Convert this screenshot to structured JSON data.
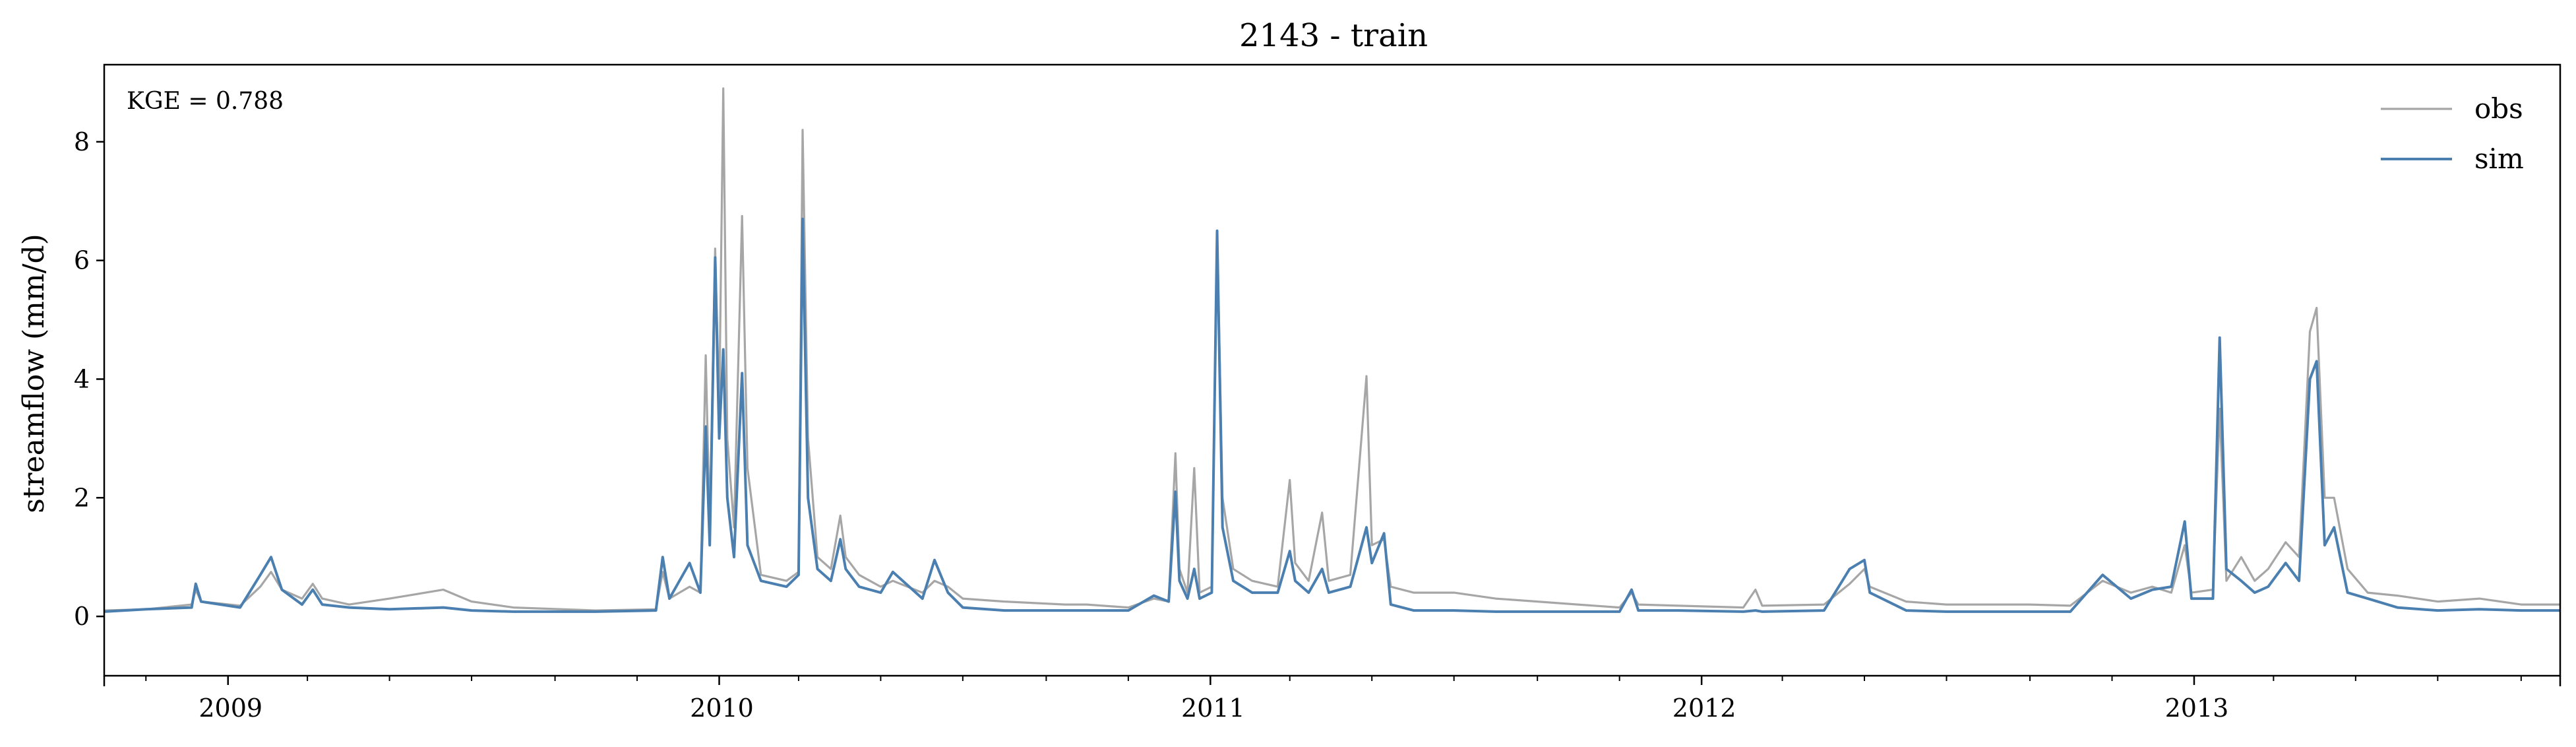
{
  "chart_data": {
    "type": "line",
    "title": "2143 - train",
    "ylabel": "streamflow (mm/d)",
    "xlabel": "",
    "annotation": "KGE = 0.788",
    "xlim": [
      "2008-10-01",
      "2013-09-30"
    ],
    "ylim": [
      -1,
      9.3
    ],
    "yticks": [
      0,
      2,
      4,
      6,
      8
    ],
    "xticks": [
      {
        "date": "2009-01-01",
        "label": "2009"
      },
      {
        "date": "2010-01-01",
        "label": "2010"
      },
      {
        "date": "2011-01-01",
        "label": "2011"
      },
      {
        "date": "2012-01-01",
        "label": "2012"
      },
      {
        "date": "2013-01-01",
        "label": "2013"
      }
    ],
    "grid": false,
    "legend": "upper-right",
    "series": [
      {
        "name": "obs",
        "color": "#a6a6a6",
        "points": [
          [
            "2008-10-01",
            0.1
          ],
          [
            "2008-11-01",
            0.12
          ],
          [
            "2008-12-05",
            0.2
          ],
          [
            "2008-12-08",
            0.45
          ],
          [
            "2008-12-12",
            0.25
          ],
          [
            "2009-01-10",
            0.18
          ],
          [
            "2009-01-25",
            0.5
          ],
          [
            "2009-02-02",
            0.75
          ],
          [
            "2009-02-10",
            0.45
          ],
          [
            "2009-02-25",
            0.3
          ],
          [
            "2009-03-05",
            0.55
          ],
          [
            "2009-03-12",
            0.3
          ],
          [
            "2009-04-01",
            0.2
          ],
          [
            "2009-05-01",
            0.3
          ],
          [
            "2009-06-10",
            0.45
          ],
          [
            "2009-07-01",
            0.25
          ],
          [
            "2009-08-01",
            0.15
          ],
          [
            "2009-10-01",
            0.1
          ],
          [
            "2009-11-15",
            0.12
          ],
          [
            "2009-11-20",
            0.75
          ],
          [
            "2009-11-25",
            0.3
          ],
          [
            "2009-12-10",
            0.5
          ],
          [
            "2009-12-18",
            0.4
          ],
          [
            "2009-12-22",
            4.4
          ],
          [
            "2009-12-25",
            1.5
          ],
          [
            "2009-12-29",
            6.2
          ],
          [
            "2010-01-01",
            3.5
          ],
          [
            "2010-01-04",
            8.9
          ],
          [
            "2010-01-07",
            3.0
          ],
          [
            "2010-01-12",
            1.5
          ],
          [
            "2010-01-18",
            6.75
          ],
          [
            "2010-01-22",
            2.5
          ],
          [
            "2010-02-01",
            0.7
          ],
          [
            "2010-02-20",
            0.6
          ],
          [
            "2010-03-01",
            0.75
          ],
          [
            "2010-03-04",
            8.2
          ],
          [
            "2010-03-08",
            3.0
          ],
          [
            "2010-03-15",
            1.0
          ],
          [
            "2010-03-25",
            0.8
          ],
          [
            "2010-04-01",
            1.7
          ],
          [
            "2010-04-05",
            1.0
          ],
          [
            "2010-04-15",
            0.7
          ],
          [
            "2010-05-01",
            0.5
          ],
          [
            "2010-05-10",
            0.6
          ],
          [
            "2010-06-01",
            0.4
          ],
          [
            "2010-06-10",
            0.6
          ],
          [
            "2010-06-20",
            0.5
          ],
          [
            "2010-07-01",
            0.3
          ],
          [
            "2010-08-01",
            0.25
          ],
          [
            "2010-09-15",
            0.2
          ],
          [
            "2010-10-01",
            0.2
          ],
          [
            "2010-11-01",
            0.15
          ],
          [
            "2010-11-20",
            0.3
          ],
          [
            "2010-12-01",
            0.25
          ],
          [
            "2010-12-06",
            2.75
          ],
          [
            "2010-12-09",
            0.8
          ],
          [
            "2010-12-15",
            0.4
          ],
          [
            "2010-12-20",
            2.5
          ],
          [
            "2010-12-24",
            0.4
          ],
          [
            "2011-01-02",
            0.5
          ],
          [
            "2011-01-06",
            6.5
          ],
          [
            "2011-01-10",
            2.0
          ],
          [
            "2011-01-18",
            0.8
          ],
          [
            "2011-02-01",
            0.6
          ],
          [
            "2011-02-20",
            0.5
          ],
          [
            "2011-03-01",
            2.3
          ],
          [
            "2011-03-05",
            0.9
          ],
          [
            "2011-03-15",
            0.6
          ],
          [
            "2011-03-25",
            1.75
          ],
          [
            "2011-03-30",
            0.6
          ],
          [
            "2011-04-15",
            0.7
          ],
          [
            "2011-04-27",
            4.05
          ],
          [
            "2011-05-01",
            1.2
          ],
          [
            "2011-05-10",
            1.3
          ],
          [
            "2011-05-15",
            0.5
          ],
          [
            "2011-06-01",
            0.4
          ],
          [
            "2011-07-01",
            0.4
          ],
          [
            "2011-08-01",
            0.3
          ],
          [
            "2011-09-01",
            0.25
          ],
          [
            "2011-10-01",
            0.2
          ],
          [
            "2011-11-01",
            0.15
          ],
          [
            "2011-11-10",
            0.4
          ],
          [
            "2011-11-15",
            0.2
          ],
          [
            "2011-12-15",
            0.18
          ],
          [
            "2012-02-01",
            0.15
          ],
          [
            "2012-02-10",
            0.45
          ],
          [
            "2012-02-15",
            0.18
          ],
          [
            "2012-04-01",
            0.2
          ],
          [
            "2012-04-20",
            0.55
          ],
          [
            "2012-05-01",
            0.8
          ],
          [
            "2012-05-05",
            0.5
          ],
          [
            "2012-06-01",
            0.25
          ],
          [
            "2012-07-01",
            0.2
          ],
          [
            "2012-09-01",
            0.2
          ],
          [
            "2012-10-01",
            0.18
          ],
          [
            "2012-10-25",
            0.6
          ],
          [
            "2012-11-15",
            0.4
          ],
          [
            "2012-12-01",
            0.5
          ],
          [
            "2012-12-15",
            0.4
          ],
          [
            "2012-12-25",
            1.2
          ],
          [
            "2012-12-30",
            0.4
          ],
          [
            "2013-01-15",
            0.45
          ],
          [
            "2013-01-20",
            3.5
          ],
          [
            "2013-01-25",
            0.6
          ],
          [
            "2013-02-05",
            1.0
          ],
          [
            "2013-02-15",
            0.6
          ],
          [
            "2013-02-25",
            0.8
          ],
          [
            "2013-03-10",
            1.25
          ],
          [
            "2013-03-20",
            1.0
          ],
          [
            "2013-03-28",
            4.8
          ],
          [
            "2013-04-02",
            5.2
          ],
          [
            "2013-04-08",
            2.0
          ],
          [
            "2013-04-15",
            2.0
          ],
          [
            "2013-04-25",
            0.8
          ],
          [
            "2013-05-10",
            0.4
          ],
          [
            "2013-06-01",
            0.35
          ],
          [
            "2013-07-01",
            0.25
          ],
          [
            "2013-08-01",
            0.3
          ],
          [
            "2013-09-01",
            0.2
          ],
          [
            "2013-09-30",
            0.2
          ]
        ]
      },
      {
        "name": "sim",
        "color": "#4a7fb0",
        "points": [
          [
            "2008-10-01",
            0.08
          ],
          [
            "2008-11-01",
            0.12
          ],
          [
            "2008-12-05",
            0.15
          ],
          [
            "2008-12-08",
            0.55
          ],
          [
            "2008-12-12",
            0.25
          ],
          [
            "2009-01-10",
            0.15
          ],
          [
            "2009-01-25",
            0.7
          ],
          [
            "2009-02-02",
            1.0
          ],
          [
            "2009-02-10",
            0.45
          ],
          [
            "2009-02-25",
            0.2
          ],
          [
            "2009-03-05",
            0.45
          ],
          [
            "2009-03-12",
            0.2
          ],
          [
            "2009-04-01",
            0.15
          ],
          [
            "2009-05-01",
            0.12
          ],
          [
            "2009-06-10",
            0.15
          ],
          [
            "2009-07-01",
            0.1
          ],
          [
            "2009-08-01",
            0.08
          ],
          [
            "2009-10-01",
            0.08
          ],
          [
            "2009-11-15",
            0.1
          ],
          [
            "2009-11-20",
            1.0
          ],
          [
            "2009-11-25",
            0.3
          ],
          [
            "2009-12-10",
            0.9
          ],
          [
            "2009-12-18",
            0.4
          ],
          [
            "2009-12-22",
            3.2
          ],
          [
            "2009-12-25",
            1.2
          ],
          [
            "2009-12-29",
            6.05
          ],
          [
            "2010-01-01",
            3.0
          ],
          [
            "2010-01-04",
            4.5
          ],
          [
            "2010-01-07",
            2.0
          ],
          [
            "2010-01-12",
            1.0
          ],
          [
            "2010-01-18",
            4.1
          ],
          [
            "2010-01-22",
            1.2
          ],
          [
            "2010-02-01",
            0.6
          ],
          [
            "2010-02-20",
            0.5
          ],
          [
            "2010-03-01",
            0.7
          ],
          [
            "2010-03-04",
            6.7
          ],
          [
            "2010-03-08",
            2.0
          ],
          [
            "2010-03-15",
            0.8
          ],
          [
            "2010-03-25",
            0.6
          ],
          [
            "2010-04-01",
            1.3
          ],
          [
            "2010-04-05",
            0.8
          ],
          [
            "2010-04-15",
            0.5
          ],
          [
            "2010-05-01",
            0.4
          ],
          [
            "2010-05-10",
            0.75
          ],
          [
            "2010-06-01",
            0.3
          ],
          [
            "2010-06-10",
            0.95
          ],
          [
            "2010-06-20",
            0.4
          ],
          [
            "2010-07-01",
            0.15
          ],
          [
            "2010-08-01",
            0.1
          ],
          [
            "2010-09-15",
            0.1
          ],
          [
            "2010-10-01",
            0.1
          ],
          [
            "2010-11-01",
            0.1
          ],
          [
            "2010-11-20",
            0.35
          ],
          [
            "2010-12-01",
            0.25
          ],
          [
            "2010-12-06",
            2.1
          ],
          [
            "2010-12-09",
            0.6
          ],
          [
            "2010-12-15",
            0.3
          ],
          [
            "2010-12-20",
            0.8
          ],
          [
            "2010-12-24",
            0.3
          ],
          [
            "2011-01-02",
            0.4
          ],
          [
            "2011-01-06",
            6.5
          ],
          [
            "2011-01-10",
            1.5
          ],
          [
            "2011-01-18",
            0.6
          ],
          [
            "2011-02-01",
            0.4
          ],
          [
            "2011-02-20",
            0.4
          ],
          [
            "2011-03-01",
            1.1
          ],
          [
            "2011-03-05",
            0.6
          ],
          [
            "2011-03-15",
            0.4
          ],
          [
            "2011-03-25",
            0.8
          ],
          [
            "2011-03-30",
            0.4
          ],
          [
            "2011-04-15",
            0.5
          ],
          [
            "2011-04-27",
            1.5
          ],
          [
            "2011-05-01",
            0.9
          ],
          [
            "2011-05-10",
            1.4
          ],
          [
            "2011-05-15",
            0.2
          ],
          [
            "2011-06-01",
            0.1
          ],
          [
            "2011-07-01",
            0.1
          ],
          [
            "2011-08-01",
            0.08
          ],
          [
            "2011-09-01",
            0.08
          ],
          [
            "2011-10-01",
            0.08
          ],
          [
            "2011-11-01",
            0.08
          ],
          [
            "2011-11-10",
            0.45
          ],
          [
            "2011-11-15",
            0.1
          ],
          [
            "2011-12-15",
            0.1
          ],
          [
            "2012-02-01",
            0.08
          ],
          [
            "2012-02-10",
            0.1
          ],
          [
            "2012-02-15",
            0.08
          ],
          [
            "2012-04-01",
            0.1
          ],
          [
            "2012-04-20",
            0.8
          ],
          [
            "2012-05-01",
            0.95
          ],
          [
            "2012-05-05",
            0.4
          ],
          [
            "2012-06-01",
            0.1
          ],
          [
            "2012-07-01",
            0.08
          ],
          [
            "2012-09-01",
            0.08
          ],
          [
            "2012-10-01",
            0.08
          ],
          [
            "2012-10-25",
            0.7
          ],
          [
            "2012-11-15",
            0.3
          ],
          [
            "2012-12-01",
            0.45
          ],
          [
            "2012-12-15",
            0.5
          ],
          [
            "2012-12-25",
            1.6
          ],
          [
            "2012-12-30",
            0.3
          ],
          [
            "2013-01-15",
            0.3
          ],
          [
            "2013-01-20",
            4.7
          ],
          [
            "2013-01-25",
            0.8
          ],
          [
            "2013-02-05",
            0.6
          ],
          [
            "2013-02-15",
            0.4
          ],
          [
            "2013-02-25",
            0.5
          ],
          [
            "2013-03-10",
            0.9
          ],
          [
            "2013-03-20",
            0.6
          ],
          [
            "2013-03-28",
            4.0
          ],
          [
            "2013-04-02",
            4.3
          ],
          [
            "2013-04-08",
            1.2
          ],
          [
            "2013-04-15",
            1.5
          ],
          [
            "2013-04-25",
            0.4
          ],
          [
            "2013-05-10",
            0.3
          ],
          [
            "2013-06-01",
            0.15
          ],
          [
            "2013-07-01",
            0.1
          ],
          [
            "2013-08-01",
            0.12
          ],
          [
            "2013-09-01",
            0.1
          ],
          [
            "2013-09-30",
            0.1
          ]
        ]
      }
    ]
  }
}
